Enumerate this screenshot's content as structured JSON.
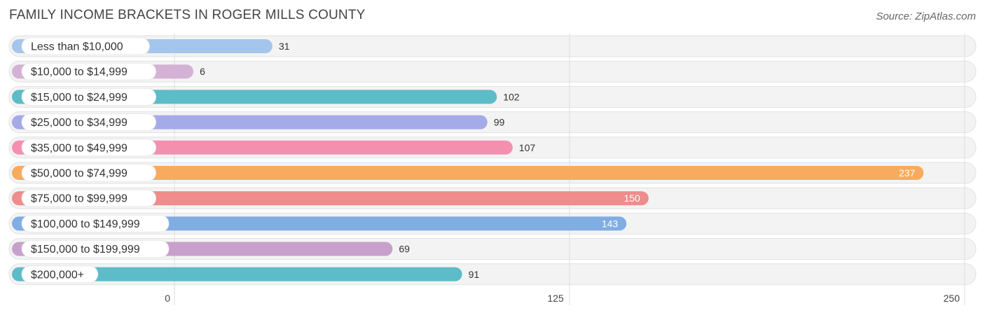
{
  "title": "FAMILY INCOME BRACKETS IN ROGER MILLS COUNTY",
  "source": "Source: ZipAtlas.com",
  "chart_data": {
    "type": "bar",
    "orientation": "horizontal",
    "categories": [
      "Less than $10,000",
      "$10,000 to $14,999",
      "$15,000 to $24,999",
      "$25,000 to $34,999",
      "$35,000 to $49,999",
      "$50,000 to $74,999",
      "$75,000 to $99,999",
      "$100,000 to $149,999",
      "$150,000 to $199,999",
      "$200,000+"
    ],
    "values": [
      31,
      6,
      102,
      99,
      107,
      237,
      150,
      143,
      69,
      91
    ],
    "colors": [
      "#a4c6ec",
      "#d3b2d5",
      "#5cbcc8",
      "#a5aae8",
      "#f58fb0",
      "#f8ab5e",
      "#ef8c8c",
      "#80ade2",
      "#c7a1cb",
      "#5cbcc8"
    ],
    "xlim": [
      0,
      250
    ],
    "xticks": [
      0,
      125,
      250
    ],
    "grid": true
  }
}
